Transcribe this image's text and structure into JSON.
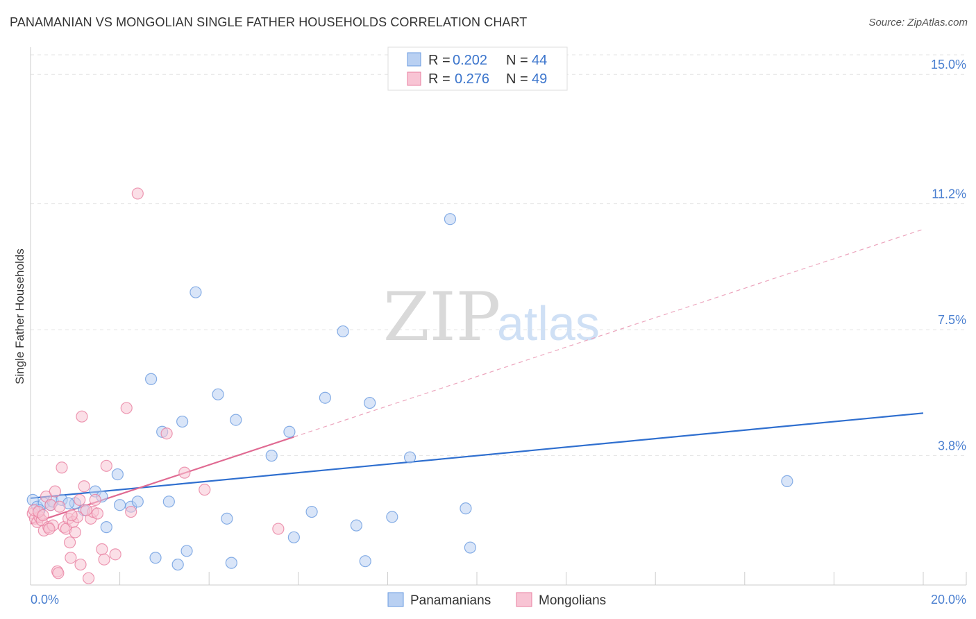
{
  "title": "PANAMANIAN VS MONGOLIAN SINGLE FATHER HOUSEHOLDS CORRELATION CHART",
  "source": "Source: ZipAtlas.com",
  "watermark": {
    "zip": "ZIP",
    "atlas": "atlas"
  },
  "chart_data": {
    "type": "scatter",
    "ylabel": "Single Father Households",
    "xlim": [
      0,
      20
    ],
    "ylim": [
      0,
      15.8
    ],
    "x_tick_labels": [
      "0.0%",
      "20.0%"
    ],
    "y_ticks": [
      {
        "value": 3.8,
        "label": "3.8%"
      },
      {
        "value": 7.5,
        "label": "7.5%"
      },
      {
        "value": 11.2,
        "label": "11.2%"
      },
      {
        "value": 15.0,
        "label": "15.0%"
      }
    ],
    "legend": [
      {
        "label": "R = ",
        "r": "0.202",
        "n_label": "N = ",
        "n": "44",
        "color": "#6a9be0",
        "fill": "#b9d0f2"
      },
      {
        "label": "R = ",
        "r": "0.276",
        "n_label": "N = ",
        "n": "49",
        "color": "#e87fa0",
        "fill": "#f8c4d4"
      }
    ],
    "series": [
      {
        "name": "Panamanians",
        "color": "#6a9be0",
        "fill": "#b9d0f2",
        "trend": {
          "x0": 0,
          "y0": 2.55,
          "x1": 20,
          "y1": 5.05,
          "color": "#2f6fcf"
        },
        "points": [
          [
            0.05,
            2.5
          ],
          [
            0.15,
            2.3
          ],
          [
            0.3,
            2.4
          ],
          [
            0.45,
            2.35
          ],
          [
            0.5,
            2.45
          ],
          [
            0.7,
            2.5
          ],
          [
            1.0,
            2.4
          ],
          [
            1.2,
            2.2
          ],
          [
            1.45,
            2.75
          ],
          [
            1.6,
            2.6
          ],
          [
            1.7,
            1.7
          ],
          [
            1.95,
            3.25
          ],
          [
            2.0,
            2.35
          ],
          [
            2.25,
            2.3
          ],
          [
            2.4,
            2.45
          ],
          [
            2.7,
            6.05
          ],
          [
            2.8,
            0.8
          ],
          [
            2.95,
            4.5
          ],
          [
            3.1,
            2.45
          ],
          [
            3.3,
            0.6
          ],
          [
            3.4,
            4.8
          ],
          [
            3.5,
            1.0
          ],
          [
            3.7,
            8.6
          ],
          [
            4.2,
            5.6
          ],
          [
            4.4,
            1.95
          ],
          [
            4.5,
            0.65
          ],
          [
            4.6,
            4.85
          ],
          [
            5.4,
            3.8
          ],
          [
            5.8,
            4.5
          ],
          [
            5.9,
            1.4
          ],
          [
            6.3,
            2.15
          ],
          [
            6.6,
            5.5
          ],
          [
            7.0,
            7.45
          ],
          [
            7.3,
            1.75
          ],
          [
            7.5,
            0.7
          ],
          [
            7.6,
            5.35
          ],
          [
            8.1,
            2.0
          ],
          [
            8.5,
            3.75
          ],
          [
            9.4,
            10.75
          ],
          [
            9.75,
            2.25
          ],
          [
            9.85,
            1.1
          ],
          [
            16.95,
            3.05
          ],
          [
            0.2,
            2.2
          ],
          [
            0.85,
            2.4
          ]
        ]
      },
      {
        "name": "Mongolians",
        "color": "#e87fa0",
        "fill": "#f8c4d4",
        "trend": {
          "x0": 0,
          "y0": 1.8,
          "x1": 5.9,
          "y1": 4.35,
          "color": "#e06a92"
        },
        "trend_dashed": {
          "x0": 5.9,
          "y0": 4.35,
          "x1": 20,
          "y1": 10.45,
          "color": "#eca5bd"
        },
        "points": [
          [
            0.05,
            2.1
          ],
          [
            0.1,
            1.95
          ],
          [
            0.15,
            1.85
          ],
          [
            0.2,
            2.0
          ],
          [
            0.25,
            1.9
          ],
          [
            0.3,
            1.6
          ],
          [
            0.35,
            2.6
          ],
          [
            0.4,
            1.7
          ],
          [
            0.45,
            2.35
          ],
          [
            0.5,
            1.75
          ],
          [
            0.55,
            2.75
          ],
          [
            0.6,
            0.4
          ],
          [
            0.62,
            0.35
          ],
          [
            0.7,
            3.45
          ],
          [
            0.75,
            1.7
          ],
          [
            0.8,
            1.65
          ],
          [
            0.85,
            1.95
          ],
          [
            0.88,
            1.25
          ],
          [
            0.9,
            0.8
          ],
          [
            0.95,
            1.85
          ],
          [
            1.0,
            1.55
          ],
          [
            1.05,
            2.0
          ],
          [
            1.1,
            2.5
          ],
          [
            1.12,
            0.6
          ],
          [
            1.15,
            4.95
          ],
          [
            1.2,
            2.9
          ],
          [
            1.3,
            0.2
          ],
          [
            1.35,
            1.95
          ],
          [
            1.4,
            2.15
          ],
          [
            1.45,
            2.5
          ],
          [
            1.5,
            2.1
          ],
          [
            1.6,
            1.05
          ],
          [
            1.65,
            0.75
          ],
          [
            1.7,
            3.5
          ],
          [
            1.9,
            0.9
          ],
          [
            2.15,
            5.2
          ],
          [
            2.25,
            2.15
          ],
          [
            2.4,
            11.5
          ],
          [
            3.05,
            4.45
          ],
          [
            3.45,
            3.3
          ],
          [
            3.9,
            2.8
          ],
          [
            5.55,
            1.65
          ],
          [
            0.08,
            2.2
          ],
          [
            0.18,
            2.15
          ],
          [
            0.28,
            2.05
          ],
          [
            0.42,
            1.65
          ],
          [
            0.65,
            2.3
          ],
          [
            0.92,
            2.05
          ],
          [
            1.25,
            2.2
          ]
        ]
      }
    ]
  }
}
